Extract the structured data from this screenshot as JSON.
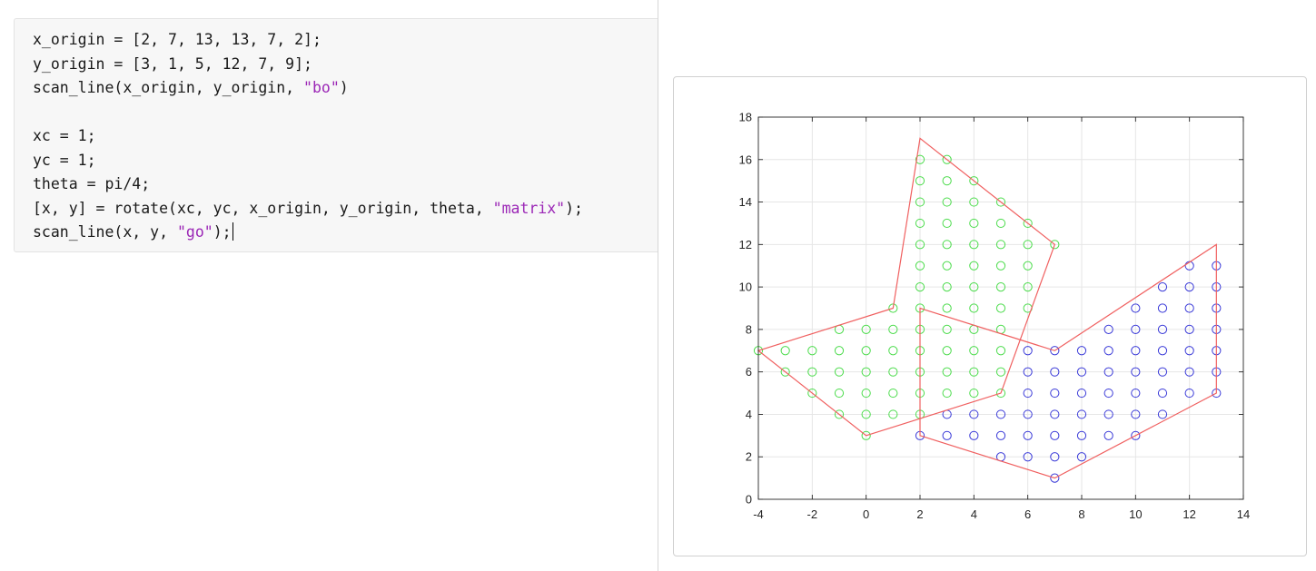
{
  "editor": {
    "lines": [
      [
        {
          "t": "x_origin = [2, 7, 13, 13, 7, 2];"
        }
      ],
      [
        {
          "t": "y_origin = [3, 1, 5, 12, 7, 9];"
        }
      ],
      [
        {
          "t": "scan_line(x_origin, y_origin, "
        },
        {
          "t": "\"bo\"",
          "cls": "str"
        },
        {
          "t": ")"
        }
      ],
      [],
      [
        {
          "t": "xc = 1;"
        }
      ],
      [
        {
          "t": "yc = 1;"
        }
      ],
      [
        {
          "t": "theta = pi/4;"
        }
      ],
      [
        {
          "t": "[x, y] = rotate(xc, yc, x_origin, y_origin, theta, "
        },
        {
          "t": "\"matrix\"",
          "cls": "str"
        },
        {
          "t": ");"
        }
      ],
      [
        {
          "t": "scan_line(x, y, "
        },
        {
          "t": "\"go\"",
          "cls": "str"
        },
        {
          "t": ");"
        }
      ]
    ],
    "caret_line": 8
  },
  "figure": {
    "chart_data": {
      "type": "scatter",
      "title": "",
      "xlabel": "",
      "ylabel": "",
      "xlim": [
        -4,
        14
      ],
      "ylim": [
        0,
        18
      ],
      "xticks": [
        -4,
        -2,
        0,
        2,
        4,
        6,
        8,
        10,
        12,
        14
      ],
      "yticks": [
        0,
        2,
        4,
        6,
        8,
        10,
        12,
        14,
        16,
        18
      ],
      "grid": true,
      "colors": {
        "outline": "#f06060",
        "blue": "#3a3ad8",
        "green": "#4cdc4c",
        "axis": "#262626",
        "grid": "#e6e6e6"
      },
      "polygons": [
        {
          "color": "#f06060",
          "x": [
            2,
            7,
            13,
            13,
            7,
            2
          ],
          "y": [
            3,
            1,
            5,
            12,
            7,
            9
          ]
        },
        {
          "color": "#f06060",
          "x": [
            0,
            5,
            7,
            2,
            1,
            -4
          ],
          "y": [
            3,
            5,
            12,
            17,
            9,
            7
          ]
        }
      ],
      "series": [
        {
          "marker": "o",
          "color": "#3a3ad8",
          "rows": [
            {
              "y": 1,
              "x": [
                7
              ]
            },
            {
              "y": 2,
              "x": [
                5,
                6,
                7,
                8
              ]
            },
            {
              "y": 3,
              "x": [
                2,
                3,
                4,
                5,
                6,
                7,
                8,
                9,
                10
              ]
            },
            {
              "y": 4,
              "x": [
                3,
                4,
                5,
                6,
                7,
                8,
                9,
                10,
                11
              ]
            },
            {
              "y": 5,
              "x": [
                6,
                7,
                8,
                9,
                10,
                11,
                12,
                13
              ]
            },
            {
              "y": 6,
              "x": [
                6,
                7,
                8,
                9,
                10,
                11,
                12,
                13
              ]
            },
            {
              "y": 7,
              "x": [
                6,
                7,
                8,
                9,
                10,
                11,
                12,
                13
              ]
            },
            {
              "y": 8,
              "x": [
                9,
                10,
                11,
                12,
                13
              ]
            },
            {
              "y": 9,
              "x": [
                10,
                11,
                12,
                13
              ]
            },
            {
              "y": 10,
              "x": [
                11,
                12,
                13
              ]
            },
            {
              "y": 11,
              "x": [
                12,
                13
              ]
            }
          ]
        },
        {
          "marker": "o",
          "color": "#4cdc4c",
          "rows": [
            {
              "y": 3,
              "x": [
                0
              ]
            },
            {
              "y": 4,
              "x": [
                -1,
                0,
                1,
                2
              ]
            },
            {
              "y": 5,
              "x": [
                -2,
                -1,
                0,
                1,
                2,
                3,
                4,
                5
              ]
            },
            {
              "y": 6,
              "x": [
                -3,
                -2,
                -1,
                0,
                1,
                2,
                3,
                4,
                5
              ]
            },
            {
              "y": 7,
              "x": [
                -4,
                -3,
                -2,
                -1,
                0,
                1,
                2,
                3,
                4,
                5
              ]
            },
            {
              "y": 8,
              "x": [
                -1,
                0,
                1,
                2,
                3,
                4,
                5
              ]
            },
            {
              "y": 9,
              "x": [
                1,
                2,
                3,
                4,
                5,
                6
              ]
            },
            {
              "y": 10,
              "x": [
                2,
                3,
                4,
                5,
                6
              ]
            },
            {
              "y": 11,
              "x": [
                2,
                3,
                4,
                5,
                6
              ]
            },
            {
              "y": 12,
              "x": [
                2,
                3,
                4,
                5,
                6,
                7
              ]
            },
            {
              "y": 13,
              "x": [
                2,
                3,
                4,
                5,
                6
              ]
            },
            {
              "y": 14,
              "x": [
                2,
                3,
                4,
                5
              ]
            },
            {
              "y": 15,
              "x": [
                2,
                3,
                4
              ]
            },
            {
              "y": 16,
              "x": [
                2,
                3
              ]
            }
          ]
        }
      ]
    }
  }
}
